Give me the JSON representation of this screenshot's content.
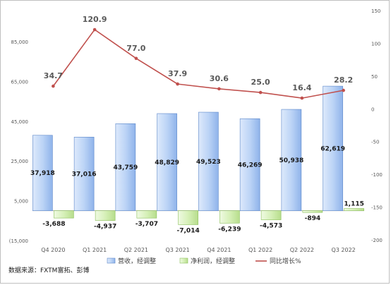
{
  "chart_data": {
    "type": "bar",
    "categories": [
      "Q4 2020",
      "Q1 2021",
      "Q2 2021",
      "Q3 2021",
      "Q4 2021",
      "Q1 2022",
      "Q2 2022",
      "Q3 2022"
    ],
    "series": [
      {
        "name": "营收，经调整",
        "type": "bar",
        "axis": "left",
        "values": [
          37918,
          37016,
          43759,
          48829,
          49523,
          46269,
          50938,
          62619
        ],
        "labels": [
          "37,918",
          "37,016",
          "43,759",
          "48,829",
          "49,523",
          "46,269",
          "50,938",
          "62,619"
        ],
        "color": "#a9c7f2"
      },
      {
        "name": "净利润，经调整",
        "type": "bar",
        "axis": "left",
        "values": [
          -3688,
          -4937,
          -3707,
          -7014,
          -6239,
          -4573,
          -894,
          1115
        ],
        "labels": [
          "-3,688",
          "-4,937",
          "-3,707",
          "-7,014",
          "-6,239",
          "-4,573",
          "-894",
          "1,115"
        ],
        "color": "#c9e8a6"
      },
      {
        "name": "同比增长%",
        "type": "line",
        "axis": "right",
        "values": [
          34.7,
          120.9,
          77.0,
          37.9,
          30.6,
          25.0,
          16.4,
          28.2
        ],
        "labels": [
          "34.7",
          "120.9",
          "77.0",
          "37.9",
          "30.6",
          "25.0",
          "16.4",
          "28.2"
        ],
        "color": "#c0504d"
      }
    ],
    "left_axis": {
      "ylim": [
        -15000,
        85000
      ],
      "ticks": [
        -15000,
        5000,
        25000,
        45000,
        65000,
        85000
      ],
      "tick_labels": [
        "(15,000",
        "5,000",
        "25,000",
        "45,000",
        "65,000",
        "85,000"
      ]
    },
    "right_axis": {
      "ylim": [
        -200,
        150
      ],
      "ticks": [
        -200,
        -150,
        -100,
        -50,
        0,
        50,
        100,
        150
      ],
      "tick_labels": [
        "-200",
        "-150",
        "-100",
        "-50",
        "0",
        "50",
        "100",
        "150"
      ]
    },
    "legend": "bottom",
    "grid": false
  },
  "source_note": "数据来源：FXTM富拓、彭博"
}
